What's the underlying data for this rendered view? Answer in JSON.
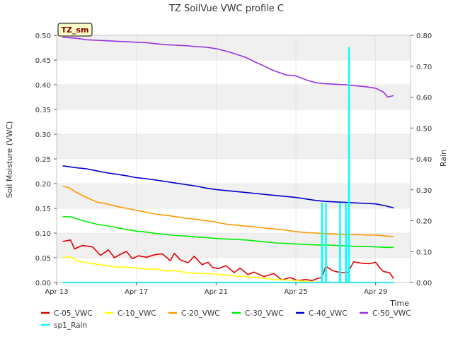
{
  "chart_data": {
    "type": "line",
    "title": "TZ SoilVue VWC profile C",
    "badge": "TZ_sm",
    "xlabel": "Time",
    "ylabel": "Soil Moisture (VWC)",
    "y2label": "Rain",
    "xlim": [
      0,
      17.75
    ],
    "ylim": [
      0,
      0.5
    ],
    "y2lim": [
      0,
      0.8
    ],
    "x_ticks": [
      {
        "x": 0,
        "label": "Apr 13"
      },
      {
        "x": 4,
        "label": "Apr 17"
      },
      {
        "x": 8,
        "label": "Apr 21"
      },
      {
        "x": 12,
        "label": "Apr 25"
      },
      {
        "x": 16,
        "label": "Apr 29"
      }
    ],
    "y_ticks": [
      "0.00",
      "0.05",
      "0.10",
      "0.15",
      "0.20",
      "0.25",
      "0.30",
      "0.35",
      "0.40",
      "0.45",
      "0.50"
    ],
    "y2_ticks": [
      "0.00",
      "0.10",
      "0.20",
      "0.30",
      "0.40",
      "0.50",
      "0.60",
      "0.70",
      "0.80"
    ],
    "grid": true,
    "legend_position": "bottom",
    "series": [
      {
        "name": "C-05_VWC",
        "color": "#dd0000",
        "axis": "left",
        "x": [
          0.3,
          0.7,
          0.9,
          1.3,
          1.8,
          2.2,
          2.6,
          2.9,
          3.2,
          3.5,
          3.8,
          4.1,
          4.5,
          4.9,
          5.3,
          5.7,
          5.9,
          6.2,
          6.6,
          6.9,
          7.3,
          7.6,
          7.8,
          8.1,
          8.5,
          8.9,
          9.2,
          9.6,
          9.9,
          10.4,
          10.9,
          11.3,
          11.7,
          12.1,
          12.5,
          12.8,
          13.1,
          13.3,
          13.5,
          13.8,
          14.0,
          14.3,
          14.6,
          14.9,
          15.3,
          15.7,
          16.0,
          16.2,
          16.4,
          16.7,
          16.9
        ],
        "y": [
          0.083,
          0.086,
          0.068,
          0.075,
          0.072,
          0.055,
          0.066,
          0.05,
          0.057,
          0.063,
          0.048,
          0.054,
          0.051,
          0.056,
          0.058,
          0.044,
          0.059,
          0.046,
          0.04,
          0.053,
          0.036,
          0.041,
          0.031,
          0.028,
          0.034,
          0.02,
          0.029,
          0.016,
          0.021,
          0.012,
          0.018,
          0.005,
          0.01,
          0.004,
          0.006,
          0.004,
          0.008,
          0.01,
          0.033,
          0.025,
          0.022,
          0.02,
          0.02,
          0.042,
          0.039,
          0.038,
          0.041,
          0.03,
          0.022,
          0.02,
          0.008
        ]
      },
      {
        "name": "C-10_VWC",
        "color": "#ffff00",
        "axis": "left",
        "x": [
          0.3,
          0.7,
          1.0,
          1.5,
          2.0,
          2.5,
          3.0,
          3.5,
          4.0,
          4.5,
          5.0,
          5.5,
          6.0,
          6.5,
          7.0,
          7.5,
          8.0,
          8.5,
          9.0,
          9.5,
          10.0,
          10.5,
          11.0,
          11.5,
          12.0,
          12.5,
          13.0,
          13.5,
          14.0,
          14.5,
          15.0,
          15.5,
          16.0,
          16.5,
          16.9
        ],
        "y": [
          0.05,
          0.052,
          0.044,
          0.04,
          0.037,
          0.034,
          0.031,
          0.031,
          0.029,
          0.027,
          0.027,
          0.023,
          0.024,
          0.02,
          0.019,
          0.018,
          0.017,
          0.015,
          0.013,
          0.012,
          0.01,
          0.008,
          0.006,
          0.005,
          0.004,
          0.002,
          0.001,
          0.0,
          0.0,
          0.0,
          0.0,
          0.0,
          0.0,
          0.0,
          0.0
        ]
      },
      {
        "name": "C-20_VWC",
        "color": "#ff9900",
        "axis": "left",
        "x": [
          0.3,
          0.6,
          1.0,
          1.5,
          2.0,
          2.5,
          3.0,
          3.5,
          4.0,
          4.5,
          5.0,
          5.5,
          6.0,
          6.5,
          7.0,
          7.5,
          8.0,
          8.5,
          9.0,
          9.5,
          10.0,
          10.5,
          11.0,
          11.5,
          12.0,
          12.5,
          13.0,
          13.5,
          14.0,
          14.5,
          15.0,
          15.5,
          16.0,
          16.5,
          16.9
        ],
        "y": [
          0.195,
          0.192,
          0.182,
          0.172,
          0.163,
          0.159,
          0.154,
          0.15,
          0.146,
          0.142,
          0.138,
          0.136,
          0.133,
          0.13,
          0.128,
          0.125,
          0.122,
          0.118,
          0.116,
          0.114,
          0.112,
          0.11,
          0.108,
          0.106,
          0.103,
          0.101,
          0.1,
          0.099,
          0.098,
          0.097,
          0.097,
          0.096,
          0.096,
          0.094,
          0.093
        ]
      },
      {
        "name": "C-30_VWC",
        "color": "#00ee00",
        "axis": "left",
        "x": [
          0.3,
          0.7,
          1.0,
          1.5,
          2.0,
          2.5,
          3.0,
          3.5,
          4.0,
          4.5,
          5.0,
          5.5,
          6.0,
          6.5,
          7.0,
          7.5,
          8.0,
          8.5,
          9.0,
          9.5,
          10.0,
          10.5,
          11.0,
          11.5,
          12.0,
          12.5,
          13.0,
          13.5,
          14.0,
          14.5,
          15.0,
          15.5,
          16.0,
          16.5,
          16.9
        ],
        "y": [
          0.133,
          0.133,
          0.129,
          0.123,
          0.118,
          0.115,
          0.111,
          0.107,
          0.104,
          0.102,
          0.099,
          0.097,
          0.095,
          0.094,
          0.092,
          0.091,
          0.089,
          0.088,
          0.087,
          0.086,
          0.084,
          0.082,
          0.08,
          0.079,
          0.078,
          0.077,
          0.076,
          0.076,
          0.075,
          0.074,
          0.073,
          0.073,
          0.072,
          0.071,
          0.071
        ]
      },
      {
        "name": "C-40_VWC",
        "color": "#0000cc",
        "axis": "left",
        "x": [
          0.3,
          1.0,
          1.5,
          2.0,
          2.5,
          3.0,
          3.5,
          4.0,
          4.5,
          5.0,
          5.5,
          6.0,
          6.5,
          7.0,
          7.5,
          8.0,
          8.5,
          9.0,
          9.5,
          10.0,
          10.5,
          11.0,
          11.5,
          12.0,
          12.5,
          13.0,
          13.5,
          14.0,
          14.5,
          15.0,
          15.5,
          16.0,
          16.5,
          16.9
        ],
        "y": [
          0.236,
          0.232,
          0.23,
          0.226,
          0.222,
          0.219,
          0.216,
          0.212,
          0.21,
          0.207,
          0.204,
          0.201,
          0.198,
          0.195,
          0.191,
          0.188,
          0.186,
          0.184,
          0.182,
          0.18,
          0.178,
          0.176,
          0.174,
          0.172,
          0.169,
          0.166,
          0.164,
          0.163,
          0.162,
          0.161,
          0.16,
          0.159,
          0.155,
          0.151
        ]
      },
      {
        "name": "C-50_VWC",
        "color": "#9933dd",
        "axis": "left",
        "x": [
          0.3,
          1.0,
          1.5,
          2.0,
          2.5,
          3.0,
          3.5,
          4.0,
          4.5,
          5.0,
          5.5,
          6.0,
          6.5,
          7.0,
          7.5,
          8.0,
          8.5,
          9.0,
          9.5,
          10.0,
          10.3,
          10.7,
          11.0,
          11.5,
          12.0,
          12.5,
          13.0,
          13.5,
          14.0,
          14.5,
          15.0,
          15.5,
          16.0,
          16.4,
          16.6,
          16.9
        ],
        "y": [
          0.496,
          0.494,
          0.491,
          0.49,
          0.489,
          0.488,
          0.487,
          0.486,
          0.485,
          0.483,
          0.481,
          0.48,
          0.479,
          0.477,
          0.476,
          0.473,
          0.468,
          0.462,
          0.455,
          0.445,
          0.44,
          0.432,
          0.427,
          0.42,
          0.418,
          0.41,
          0.404,
          0.402,
          0.401,
          0.4,
          0.398,
          0.396,
          0.393,
          0.385,
          0.375,
          0.378
        ]
      },
      {
        "name": "sp1_Rain",
        "color": "#00ffff",
        "axis": "right",
        "x": [
          0.3,
          13.3,
          13.31,
          13.32,
          13.5,
          13.51,
          13.52,
          14.2,
          14.21,
          14.22,
          14.5,
          14.51,
          14.52,
          14.65,
          14.66,
          14.67,
          16.9
        ],
        "y": [
          0,
          0,
          0.256,
          0,
          0,
          0.256,
          0,
          0,
          0.256,
          0,
          0,
          0.256,
          0,
          0,
          0.76,
          0,
          0
        ]
      }
    ]
  }
}
